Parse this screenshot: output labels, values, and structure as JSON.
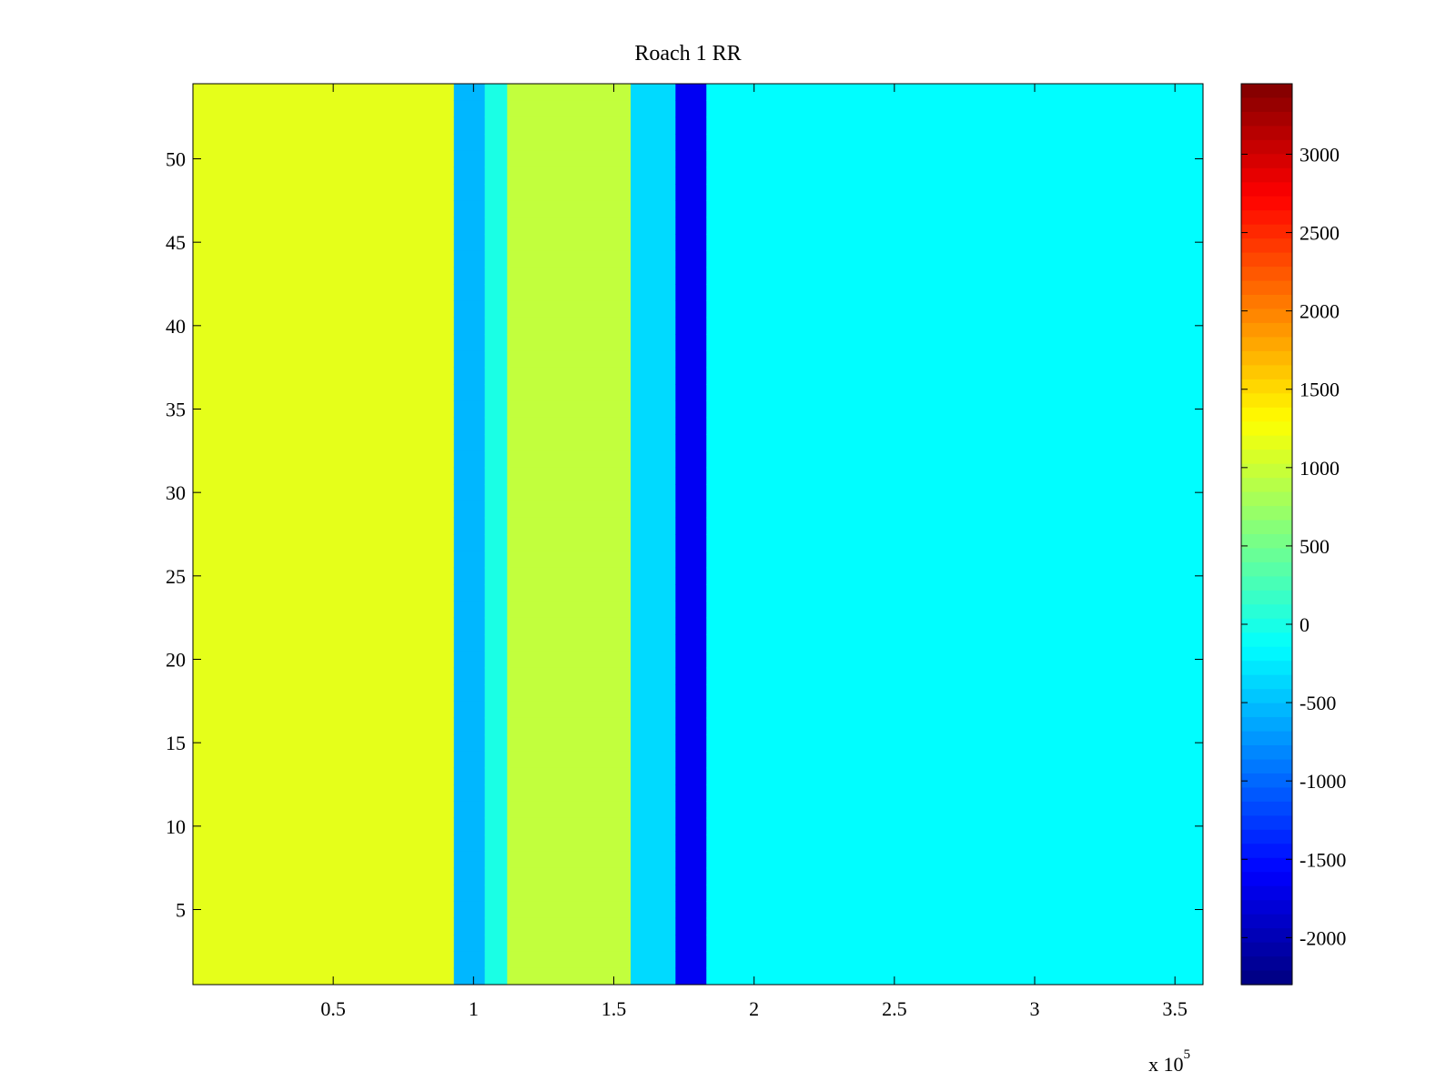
{
  "chart_data": {
    "type": "heatmap",
    "title": "Roach 1 RR",
    "xlabel": "",
    "ylabel": "",
    "x_exponent_label": "x 10",
    "x_exponent_power": "5",
    "xlim": [
      0,
      3.6
    ],
    "ylim": [
      0.5,
      54.5
    ],
    "xticks": [
      {
        "value": 0.5,
        "label": "0.5"
      },
      {
        "value": 1,
        "label": "1"
      },
      {
        "value": 1.5,
        "label": "1.5"
      },
      {
        "value": 2,
        "label": "2"
      },
      {
        "value": 2.5,
        "label": "2.5"
      },
      {
        "value": 3,
        "label": "3"
      },
      {
        "value": 3.5,
        "label": "3.5"
      }
    ],
    "yticks": [
      {
        "value": 5,
        "label": "5"
      },
      {
        "value": 10,
        "label": "10"
      },
      {
        "value": 15,
        "label": "15"
      },
      {
        "value": 20,
        "label": "20"
      },
      {
        "value": 25,
        "label": "25"
      },
      {
        "value": 30,
        "label": "30"
      },
      {
        "value": 35,
        "label": "35"
      },
      {
        "value": 40,
        "label": "40"
      },
      {
        "value": 45,
        "label": "45"
      },
      {
        "value": 50,
        "label": "50"
      }
    ],
    "rows": 54,
    "colormap": "jet",
    "clim": [
      -2300,
      3450
    ],
    "colorbar": {
      "location": "right",
      "ticks": [
        {
          "value": 3000,
          "label": "3000"
        },
        {
          "value": 2500,
          "label": "2500"
        },
        {
          "value": 2000,
          "label": "2000"
        },
        {
          "value": 1500,
          "label": "1500"
        },
        {
          "value": 1000,
          "label": "1000"
        },
        {
          "value": 500,
          "label": "500"
        },
        {
          "value": 0,
          "label": "0"
        },
        {
          "value": -500,
          "label": "-500"
        },
        {
          "value": -1000,
          "label": "-1000"
        },
        {
          "value": -1500,
          "label": "-1500"
        },
        {
          "value": -2000,
          "label": "-2000"
        }
      ]
    },
    "segments": [
      {
        "x": [
          0,
          0.93
        ],
        "value": 1150
      },
      {
        "x": [
          0.93,
          1.04
        ],
        "value": -550
      },
      {
        "x": [
          1.04,
          1.12
        ],
        "value": 0
      },
      {
        "x": [
          1.12,
          1.56
        ],
        "value": 950
      },
      {
        "x": [
          1.56,
          1.72
        ],
        "value": -350
      },
      {
        "x": [
          1.72,
          1.83
        ],
        "value": -1650
      },
      {
        "x": [
          1.83,
          3.6
        ],
        "value": -150
      }
    ]
  }
}
